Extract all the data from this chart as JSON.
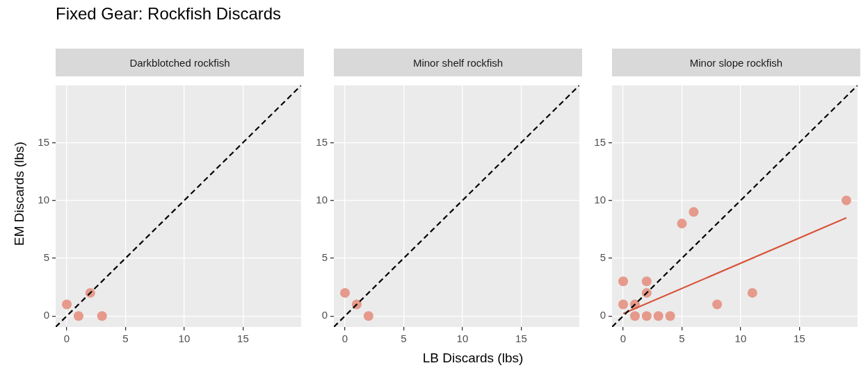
{
  "chart_data": [
    {
      "type": "scatter",
      "title": "Darkblotched rockfish",
      "ylabel": "EM Discards (lbs)",
      "annotations": [
        "Fixed Gear: Rockfish Discards"
      ],
      "xlim": [
        -0.95,
        19.95
      ],
      "ylim": [
        -0.95,
        19.95
      ],
      "xticks": [
        0,
        5,
        10,
        15
      ],
      "yticks": [
        0,
        5,
        10,
        15
      ],
      "grid": true,
      "series": [
        {
          "color": "#e59a8b",
          "marker": "circle",
          "x": [
            0,
            1,
            2,
            3
          ],
          "values": [
            1,
            0,
            2,
            0
          ]
        },
        {
          "type": "line",
          "color": "#000000",
          "marker": "none",
          "line_style": "dashed",
          "x": [
            -0.95,
            19.95
          ],
          "values": [
            -0.95,
            19.95
          ]
        }
      ]
    },
    {
      "type": "scatter",
      "title": "Minor shelf rockfish",
      "xlabel": "LB Discards (lbs)",
      "xlim": [
        -0.95,
        19.95
      ],
      "ylim": [
        -0.95,
        19.95
      ],
      "xticks": [
        0,
        5,
        10,
        15
      ],
      "yticks": [
        0,
        5,
        10,
        15
      ],
      "grid": true,
      "series": [
        {
          "color": "#e59a8b",
          "marker": "circle",
          "x": [
            0,
            1,
            2
          ],
          "values": [
            2,
            1,
            0
          ]
        },
        {
          "type": "line",
          "color": "#000000",
          "marker": "none",
          "line_style": "dashed",
          "x": [
            -0.95,
            19.95
          ],
          "values": [
            -0.95,
            19.95
          ]
        }
      ]
    },
    {
      "type": "scatter",
      "title": "Minor slope rockfish",
      "xlim": [
        -0.95,
        19.95
      ],
      "ylim": [
        -0.95,
        19.95
      ],
      "xticks": [
        0,
        5,
        10,
        15
      ],
      "yticks": [
        0,
        5,
        10,
        15
      ],
      "grid": true,
      "series": [
        {
          "color": "#e59a8b",
          "marker": "circle",
          "x": [
            0,
            0,
            1,
            1,
            2,
            2,
            2,
            3,
            4,
            5,
            6,
            8,
            11,
            19
          ],
          "values": [
            3,
            1,
            1,
            0,
            3,
            2,
            0,
            0,
            0,
            8,
            9,
            1,
            2,
            10
          ]
        },
        {
          "type": "line",
          "color": "#000000",
          "marker": "none",
          "line_style": "dashed",
          "x": [
            -0.95,
            19.95
          ],
          "values": [
            -0.95,
            19.95
          ]
        },
        {
          "type": "line",
          "color": "#d9533b",
          "marker": "none",
          "line_style": "solid",
          "x": [
            0,
            19
          ],
          "values": [
            0.2,
            8.5
          ]
        }
      ]
    }
  ]
}
